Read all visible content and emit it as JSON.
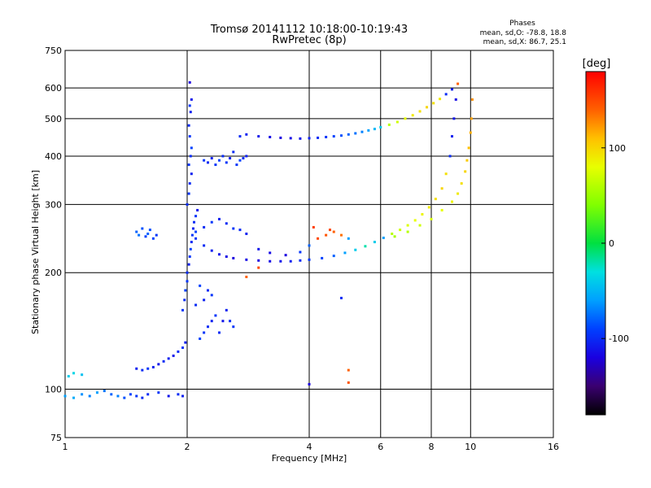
{
  "chart_data": {
    "type": "scatter",
    "title": "Tromsø 20141112 10:18:00-10:19:43",
    "subtitle": "RwPretec (8p)",
    "xlabel": "Frequency [MHz]",
    "ylabel": "Stationary phase Virtual Height [km]",
    "x_scale": "log",
    "y_scale": "log",
    "xlim": [
      1,
      16
    ],
    "ylim": [
      75,
      750
    ],
    "x_ticks": [
      1,
      2,
      4,
      6,
      8,
      10,
      16
    ],
    "y_ticks": [
      75,
      100,
      200,
      300,
      400,
      500,
      600,
      750
    ],
    "grid": true,
    "stats": {
      "heading": "Phases",
      "line_o": "mean, sd,O: -78.8, 18.8",
      "line_x": "mean, sd,X:  86.7, 25.1"
    },
    "colorbar": {
      "label": "[deg]",
      "range": [
        -180,
        180
      ],
      "ticks": [
        100,
        0,
        -100
      ]
    },
    "series": [
      {
        "points": [
          [
            1.0,
            96,
            -60
          ],
          [
            1.05,
            95,
            -55
          ],
          [
            1.1,
            97,
            -65
          ],
          [
            1.15,
            96,
            -70
          ],
          [
            1.2,
            98,
            -60
          ],
          [
            1.25,
            99,
            -75
          ],
          [
            1.3,
            97,
            -80
          ],
          [
            1.35,
            96,
            -70
          ],
          [
            1.4,
            95,
            -85
          ],
          [
            1.45,
            97,
            -90
          ],
          [
            1.5,
            96,
            -95
          ],
          [
            1.55,
            95,
            -100
          ],
          [
            1.6,
            97,
            -100
          ],
          [
            1.7,
            98,
            -95
          ],
          [
            1.8,
            96,
            -110
          ],
          [
            1.9,
            97,
            -100
          ],
          [
            1.95,
            96,
            -105
          ],
          [
            1.02,
            108,
            -40
          ],
          [
            1.05,
            110,
            -35
          ],
          [
            1.1,
            109,
            -45
          ],
          [
            1.5,
            113,
            -105
          ],
          [
            1.55,
            112,
            -100
          ],
          [
            1.6,
            113,
            -95
          ],
          [
            1.65,
            114,
            -105
          ],
          [
            1.7,
            116,
            -110
          ],
          [
            1.75,
            118,
            -100
          ],
          [
            1.8,
            120,
            -105
          ],
          [
            1.85,
            122,
            -110
          ],
          [
            1.9,
            125,
            -100
          ],
          [
            1.95,
            128,
            -95
          ],
          [
            1.98,
            132,
            -105
          ],
          [
            1.5,
            255,
            -80
          ],
          [
            1.52,
            250,
            -75
          ],
          [
            1.55,
            260,
            -85
          ],
          [
            1.58,
            248,
            -90
          ],
          [
            1.6,
            252,
            -80
          ],
          [
            1.62,
            258,
            -85
          ],
          [
            1.65,
            245,
            -90
          ],
          [
            1.68,
            250,
            -95
          ],
          [
            1.95,
            160,
            -95
          ],
          [
            1.97,
            170,
            -100
          ],
          [
            1.98,
            180,
            -90
          ],
          [
            2.0,
            190,
            -95
          ],
          [
            2.0,
            200,
            -100
          ],
          [
            2.02,
            210,
            -105
          ],
          [
            2.03,
            220,
            -95
          ],
          [
            2.04,
            230,
            -90
          ],
          [
            2.05,
            240,
            -100
          ],
          [
            2.06,
            250,
            -95
          ],
          [
            2.07,
            260,
            -105
          ],
          [
            2.08,
            270,
            -100
          ],
          [
            2.1,
            280,
            -95
          ],
          [
            2.12,
            290,
            -110
          ],
          [
            2.0,
            300,
            -100
          ],
          [
            2.02,
            320,
            -95
          ],
          [
            2.03,
            340,
            -100
          ],
          [
            2.05,
            360,
            -105
          ],
          [
            2.02,
            380,
            -95
          ],
          [
            2.04,
            400,
            -100
          ],
          [
            2.05,
            420,
            -90
          ],
          [
            2.03,
            450,
            -95
          ],
          [
            2.02,
            480,
            -100
          ],
          [
            2.04,
            520,
            -105
          ],
          [
            2.03,
            540,
            -95
          ],
          [
            2.05,
            560,
            -110
          ],
          [
            2.03,
            620,
            -120
          ],
          [
            2.15,
            135,
            -90
          ],
          [
            2.2,
            140,
            -95
          ],
          [
            2.25,
            145,
            -100
          ],
          [
            2.3,
            150,
            -105
          ],
          [
            2.35,
            155,
            -95
          ],
          [
            2.4,
            140,
            -100
          ],
          [
            2.45,
            150,
            -110
          ],
          [
            2.5,
            160,
            -105
          ],
          [
            2.55,
            150,
            -100
          ],
          [
            2.6,
            145,
            -95
          ],
          [
            2.1,
            165,
            -100
          ],
          [
            2.2,
            170,
            -105
          ],
          [
            2.3,
            175,
            -95
          ],
          [
            2.15,
            185,
            -90
          ],
          [
            2.25,
            180,
            -100
          ],
          [
            2.2,
            390,
            -95
          ],
          [
            2.25,
            385,
            -100
          ],
          [
            2.3,
            395,
            -105
          ],
          [
            2.35,
            380,
            -95
          ],
          [
            2.4,
            390,
            -90
          ],
          [
            2.45,
            400,
            -100
          ],
          [
            2.5,
            385,
            -95
          ],
          [
            2.55,
            395,
            -105
          ],
          [
            2.6,
            410,
            -100
          ],
          [
            2.65,
            380,
            -95
          ],
          [
            2.7,
            390,
            -90
          ],
          [
            2.75,
            395,
            -100
          ],
          [
            2.8,
            400,
            -105
          ],
          [
            2.7,
            450,
            -100
          ],
          [
            2.8,
            455,
            -105
          ],
          [
            3.0,
            450,
            -110
          ],
          [
            3.2,
            448,
            -115
          ],
          [
            3.4,
            446,
            -120
          ],
          [
            3.6,
            445,
            -115
          ],
          [
            3.8,
            444,
            -110
          ],
          [
            4.0,
            445,
            -105
          ],
          [
            4.2,
            446,
            -100
          ],
          [
            4.4,
            448,
            -95
          ],
          [
            4.6,
            450,
            -90
          ],
          [
            4.8,
            452,
            -85
          ],
          [
            5.0,
            455,
            -80
          ],
          [
            5.2,
            458,
            -75
          ],
          [
            5.4,
            462,
            -70
          ],
          [
            5.6,
            466,
            -60
          ],
          [
            5.8,
            470,
            -50
          ],
          [
            6.0,
            475,
            -40
          ],
          [
            6.3,
            482,
            60
          ],
          [
            6.6,
            490,
            70
          ],
          [
            6.9,
            500,
            80
          ],
          [
            7.2,
            510,
            90
          ],
          [
            7.5,
            522,
            95
          ],
          [
            7.8,
            535,
            100
          ],
          [
            8.1,
            548,
            95
          ],
          [
            8.4,
            562,
            90
          ],
          [
            8.7,
            578,
            -100
          ],
          [
            9.0,
            595,
            -105
          ],
          [
            9.3,
            615,
            140
          ],
          [
            2.1,
            245,
            -95
          ],
          [
            2.2,
            235,
            -100
          ],
          [
            2.3,
            228,
            -105
          ],
          [
            2.4,
            223,
            -110
          ],
          [
            2.5,
            220,
            -115
          ],
          [
            2.6,
            218,
            -120
          ],
          [
            2.8,
            216,
            -115
          ],
          [
            3.0,
            215,
            -120
          ],
          [
            3.2,
            214,
            -115
          ],
          [
            3.4,
            214,
            -110
          ],
          [
            3.6,
            214,
            -105
          ],
          [
            3.8,
            215,
            -100
          ],
          [
            4.0,
            216,
            -95
          ],
          [
            4.3,
            218,
            -90
          ],
          [
            4.6,
            221,
            -80
          ],
          [
            4.9,
            225,
            -60
          ],
          [
            5.2,
            229,
            -40
          ],
          [
            5.5,
            234,
            -20
          ],
          [
            5.8,
            240,
            -40
          ],
          [
            6.1,
            246,
            -60
          ],
          [
            6.4,
            252,
            60
          ],
          [
            6.7,
            258,
            70
          ],
          [
            7.0,
            265,
            75
          ],
          [
            7.3,
            273,
            80
          ],
          [
            7.6,
            283,
            85
          ],
          [
            7.9,
            295,
            90
          ],
          [
            8.2,
            310,
            95
          ],
          [
            8.5,
            330,
            100
          ],
          [
            8.7,
            360,
            95
          ],
          [
            8.9,
            400,
            -100
          ],
          [
            9.0,
            450,
            -105
          ],
          [
            9.1,
            500,
            -110
          ],
          [
            9.2,
            560,
            -115
          ],
          [
            6.5,
            248,
            55
          ],
          [
            7.0,
            255,
            60
          ],
          [
            7.5,
            265,
            70
          ],
          [
            8.0,
            275,
            75
          ],
          [
            8.5,
            290,
            80
          ],
          [
            9.0,
            305,
            85
          ],
          [
            9.3,
            320,
            90
          ],
          [
            9.5,
            340,
            95
          ],
          [
            9.7,
            365,
            100
          ],
          [
            9.8,
            390,
            105
          ],
          [
            9.9,
            420,
            110
          ],
          [
            10.0,
            460,
            115
          ],
          [
            10.05,
            500,
            120
          ],
          [
            10.1,
            560,
            125
          ],
          [
            3.0,
            230,
            -110
          ],
          [
            3.2,
            225,
            -115
          ],
          [
            3.5,
            222,
            -120
          ],
          [
            3.8,
            226,
            -95
          ],
          [
            4.0,
            235,
            -80
          ],
          [
            4.2,
            245,
            150
          ],
          [
            4.4,
            250,
            145
          ],
          [
            4.6,
            255,
            140
          ],
          [
            4.8,
            250,
            135
          ],
          [
            5.0,
            245,
            -60
          ],
          [
            4.1,
            262,
            155
          ],
          [
            4.5,
            258,
            150
          ],
          [
            2.1,
            255,
            -90
          ],
          [
            2.2,
            262,
            -100
          ],
          [
            2.3,
            270,
            -95
          ],
          [
            2.4,
            275,
            -105
          ],
          [
            2.5,
            268,
            -100
          ],
          [
            2.6,
            260,
            -95
          ],
          [
            2.7,
            258,
            -100
          ],
          [
            2.8,
            252,
            -105
          ],
          [
            4.0,
            103,
            -120
          ],
          [
            5.0,
            112,
            140
          ],
          [
            5.0,
            104,
            145
          ],
          [
            4.8,
            172,
            -100
          ],
          [
            3.0,
            206,
            150
          ],
          [
            2.8,
            195,
            140
          ]
        ]
      }
    ]
  }
}
